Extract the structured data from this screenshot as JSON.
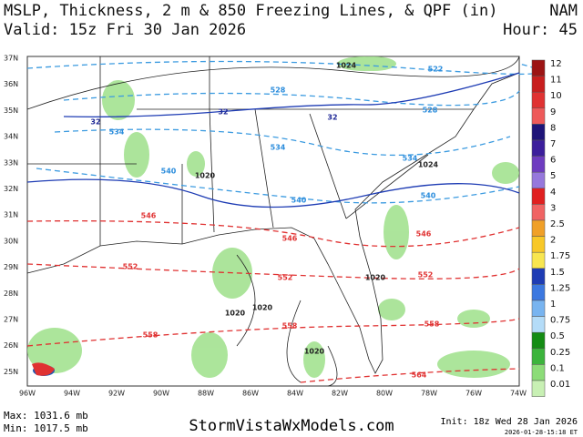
{
  "header": {
    "title": "MSLP, Thickness, 2 m & 850 Freezing Lines, & QPF (in)",
    "model": "NAM",
    "valid": "Valid: 15z Fri 30 Jan 2026",
    "hour": "Hour: 45"
  },
  "map": {
    "lat_labels": [
      "37N",
      "36N",
      "35N",
      "34N",
      "33N",
      "32N",
      "31N",
      "30N",
      "29N",
      "28N",
      "27N",
      "26N",
      "25N"
    ],
    "lon_labels": [
      "96W",
      "94W",
      "92W",
      "90W",
      "88W",
      "86W",
      "84W",
      "82W",
      "80W",
      "78W",
      "76W",
      "74W"
    ],
    "contour_labels": [
      1024,
      522,
      528,
      528,
      32,
      32,
      32,
      534,
      534,
      534,
      1024,
      540,
      1020,
      540,
      540,
      546,
      546,
      546,
      552,
      552,
      552,
      1020,
      1020,
      1020,
      558,
      558,
      558,
      1020,
      564
    ]
  },
  "colorbar": {
    "labels": [
      12,
      11,
      10,
      9,
      8,
      7,
      6,
      5,
      4,
      3,
      2.5,
      2,
      1.75,
      1.5,
      1.25,
      1,
      0.75,
      0.5,
      0.25,
      0.1,
      0.01
    ],
    "colors": [
      "#9c1414",
      "#c81e1e",
      "#e03232",
      "#ee5a5a",
      "#1e1478",
      "#3c1e9c",
      "#6e3cc0",
      "#9678dc",
      "#e02020",
      "#f06464",
      "#f0a028",
      "#f8c828",
      "#f8e650",
      "#1e3cb4",
      "#3c78e0",
      "#78b4f0",
      "#b4dcf8",
      "#148c14",
      "#3cb43c",
      "#8cdc78",
      "#c8f0b4"
    ]
  },
  "footer": {
    "max": "Max: 1031.6 mb",
    "min": "Min: 1017.5 mb",
    "site": "StormVistaWxModels.com",
    "init": "Init: 18z Wed 28 Jan 2026",
    "stamp": "2026-01-28-15:18 ET"
  }
}
